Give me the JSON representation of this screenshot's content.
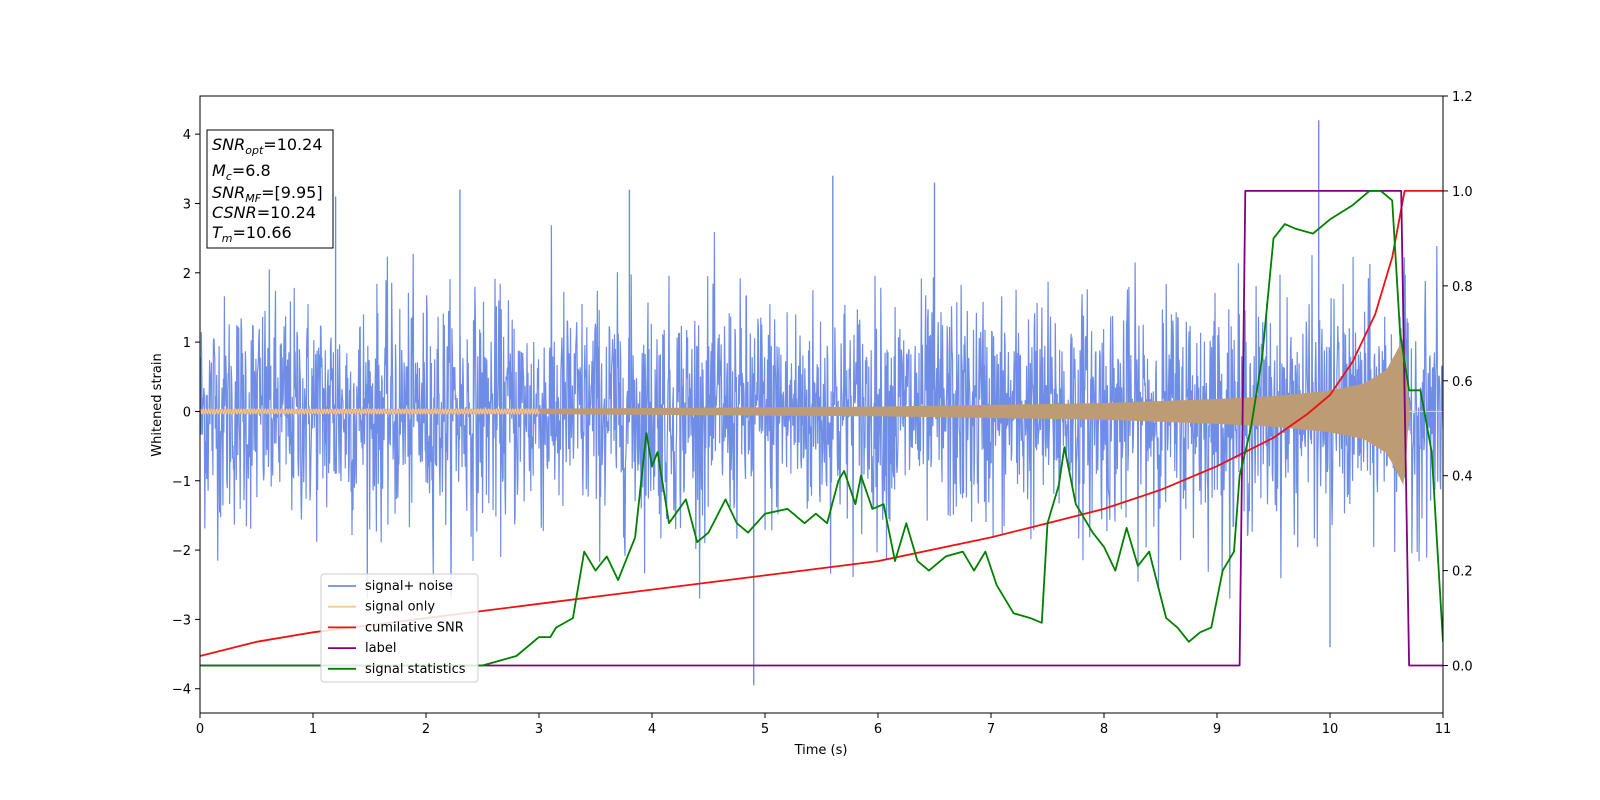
{
  "chart_data": {
    "type": "line",
    "xlabel": "Time (s)",
    "ylabel": "Whitened strain",
    "xlim": [
      0,
      11
    ],
    "ylim_left": [
      -4.35,
      4.55
    ],
    "ylim_right": [
      -0.1,
      1.2
    ],
    "x_ticks": [
      "0",
      "1",
      "2",
      "3",
      "4",
      "5",
      "6",
      "7",
      "8",
      "9",
      "10",
      "11"
    ],
    "y_ticks_left": [
      "−4",
      "−3",
      "−2",
      "−1",
      "0",
      "1",
      "2",
      "3",
      "4"
    ],
    "y_ticks_right": [
      "0.0",
      "0.2",
      "0.4",
      "0.6",
      "0.8",
      "1.0",
      "1.2"
    ],
    "annotation": [
      {
        "sym": "SNR",
        "sub": "opt",
        "value": "=10.24"
      },
      {
        "sym": "M",
        "sub": "c",
        "value": "=6.8"
      },
      {
        "sym": "SNR",
        "sub": "MF",
        "value": "=[9.95]"
      },
      {
        "sym": "CSNR",
        "sub": "",
        "value": "=10.24"
      },
      {
        "sym": "T",
        "sub": "m",
        "value": "=10.66"
      }
    ],
    "legend_position": "lower-left",
    "colors": {
      "signal_noise": "#6f8de6",
      "signal_only": "#f7c98b",
      "signal_only_overlap": "#bd9b74",
      "cumulative_snr": "#ee1111",
      "label": "#800080",
      "signal_statistics": "#008000"
    },
    "series": [
      {
        "name": "signal+ noise",
        "axis": "left",
        "description": "whitened strain noise, amplitude mostly within ±2.2 with spikes to about ±3.4",
        "spikes": [
          [
            1.2,
            3.1
          ],
          [
            2.3,
            3.2
          ],
          [
            3.8,
            3.2
          ],
          [
            4.9,
            -3.95
          ],
          [
            5.6,
            3.4
          ],
          [
            6.5,
            3.3
          ],
          [
            9.9,
            4.2
          ],
          [
            10.0,
            -3.4
          ]
        ]
      },
      {
        "name": "signal only",
        "axis": "left",
        "description": "chirp signal with growing amplitude ending at merger near 10.66 s",
        "envelope": [
          [
            0.0,
            0.03
          ],
          [
            3.0,
            0.04
          ],
          [
            6.0,
            0.07
          ],
          [
            8.0,
            0.12
          ],
          [
            9.0,
            0.18
          ],
          [
            9.5,
            0.22
          ],
          [
            10.0,
            0.3
          ],
          [
            10.3,
            0.4
          ],
          [
            10.5,
            0.6
          ],
          [
            10.6,
            0.9
          ],
          [
            10.66,
            1.1
          ],
          [
            10.7,
            0.0
          ]
        ]
      },
      {
        "name": "cumilative SNR",
        "axis": "right",
        "points": [
          [
            0.0,
            0.02
          ],
          [
            0.5,
            0.05
          ],
          [
            1.0,
            0.07
          ],
          [
            2.0,
            0.1
          ],
          [
            3.0,
            0.13
          ],
          [
            4.0,
            0.16
          ],
          [
            5.0,
            0.19
          ],
          [
            6.0,
            0.22
          ],
          [
            7.0,
            0.27
          ],
          [
            7.5,
            0.3
          ],
          [
            8.0,
            0.33
          ],
          [
            8.5,
            0.37
          ],
          [
            9.0,
            0.42
          ],
          [
            9.5,
            0.48
          ],
          [
            9.8,
            0.53
          ],
          [
            10.0,
            0.57
          ],
          [
            10.2,
            0.64
          ],
          [
            10.4,
            0.74
          ],
          [
            10.55,
            0.86
          ],
          [
            10.66,
            1.0
          ],
          [
            11.0,
            1.0
          ]
        ]
      },
      {
        "name": "label",
        "axis": "right",
        "points": [
          [
            0.0,
            0.0
          ],
          [
            9.2,
            0.0
          ],
          [
            9.25,
            1.0
          ],
          [
            10.63,
            1.0
          ],
          [
            10.7,
            0.0
          ],
          [
            11.0,
            0.0
          ]
        ]
      },
      {
        "name": "signal statistics",
        "axis": "right",
        "points": [
          [
            0.0,
            0.0
          ],
          [
            1.0,
            0.0
          ],
          [
            2.0,
            0.0
          ],
          [
            2.5,
            0.0
          ],
          [
            2.8,
            0.02
          ],
          [
            3.0,
            0.06
          ],
          [
            3.1,
            0.06
          ],
          [
            3.15,
            0.08
          ],
          [
            3.3,
            0.1
          ],
          [
            3.4,
            0.24
          ],
          [
            3.5,
            0.2
          ],
          [
            3.6,
            0.23
          ],
          [
            3.7,
            0.18
          ],
          [
            3.85,
            0.27
          ],
          [
            3.95,
            0.49
          ],
          [
            4.0,
            0.42
          ],
          [
            4.05,
            0.45
          ],
          [
            4.15,
            0.3
          ],
          [
            4.3,
            0.35
          ],
          [
            4.4,
            0.26
          ],
          [
            4.5,
            0.28
          ],
          [
            4.65,
            0.35
          ],
          [
            4.75,
            0.3
          ],
          [
            4.85,
            0.28
          ],
          [
            5.0,
            0.32
          ],
          [
            5.2,
            0.33
          ],
          [
            5.35,
            0.3
          ],
          [
            5.45,
            0.32
          ],
          [
            5.55,
            0.3
          ],
          [
            5.65,
            0.39
          ],
          [
            5.7,
            0.41
          ],
          [
            5.8,
            0.34
          ],
          [
            5.85,
            0.4
          ],
          [
            5.95,
            0.33
          ],
          [
            6.05,
            0.34
          ],
          [
            6.15,
            0.22
          ],
          [
            6.25,
            0.3
          ],
          [
            6.35,
            0.22
          ],
          [
            6.45,
            0.2
          ],
          [
            6.6,
            0.23
          ],
          [
            6.75,
            0.24
          ],
          [
            6.85,
            0.2
          ],
          [
            6.95,
            0.24
          ],
          [
            7.05,
            0.17
          ],
          [
            7.2,
            0.11
          ],
          [
            7.35,
            0.1
          ],
          [
            7.45,
            0.09
          ],
          [
            7.5,
            0.3
          ],
          [
            7.6,
            0.38
          ],
          [
            7.65,
            0.46
          ],
          [
            7.75,
            0.34
          ],
          [
            7.9,
            0.28
          ],
          [
            8.0,
            0.25
          ],
          [
            8.1,
            0.2
          ],
          [
            8.2,
            0.29
          ],
          [
            8.3,
            0.21
          ],
          [
            8.4,
            0.24
          ],
          [
            8.55,
            0.1
          ],
          [
            8.65,
            0.08
          ],
          [
            8.75,
            0.05
          ],
          [
            8.85,
            0.07
          ],
          [
            8.95,
            0.08
          ],
          [
            9.05,
            0.2
          ],
          [
            9.15,
            0.24
          ],
          [
            9.2,
            0.4
          ],
          [
            9.3,
            0.5
          ],
          [
            9.4,
            0.65
          ],
          [
            9.5,
            0.9
          ],
          [
            9.6,
            0.93
          ],
          [
            9.7,
            0.92
          ],
          [
            9.85,
            0.91
          ],
          [
            10.0,
            0.94
          ],
          [
            10.2,
            0.97
          ],
          [
            10.35,
            1.0
          ],
          [
            10.45,
            1.0
          ],
          [
            10.55,
            0.98
          ],
          [
            10.62,
            0.7
          ],
          [
            10.7,
            0.58
          ],
          [
            10.8,
            0.58
          ],
          [
            10.9,
            0.45
          ],
          [
            10.95,
            0.25
          ],
          [
            11.0,
            0.05
          ]
        ]
      }
    ]
  },
  "legend": [
    {
      "label": "signal+ noise",
      "color": "#6f8de6"
    },
    {
      "label": "signal only",
      "color": "#f7c98b"
    },
    {
      "label": "cumilative SNR",
      "color": "#ee1111"
    },
    {
      "label": "label",
      "color": "#800080"
    },
    {
      "label": "signal statistics",
      "color": "#008000"
    }
  ]
}
